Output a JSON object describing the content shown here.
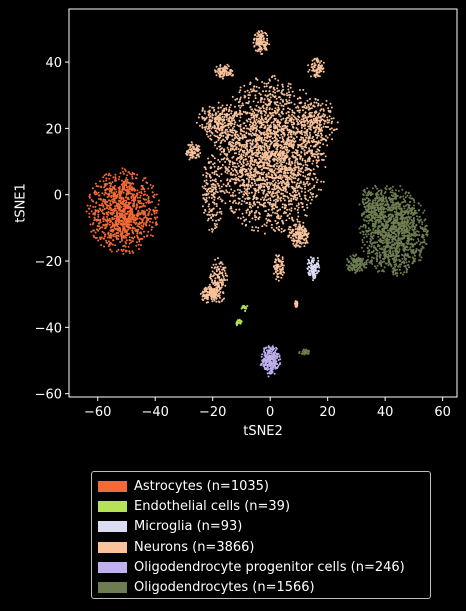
{
  "chart_data": {
    "type": "scatter",
    "title": "",
    "xlabel": "tSNE2",
    "ylabel": "tSNE1",
    "xlim": [
      -70,
      65
    ],
    "ylim": [
      -61,
      56
    ],
    "xticks": [
      -60,
      -40,
      -20,
      0,
      20,
      40,
      60
    ],
    "yticks": [
      -60,
      -40,
      -20,
      0,
      20,
      40
    ],
    "grid": false,
    "legend_position": "below",
    "series": [
      {
        "name": "Astrocytes (n=1035)",
        "color": "#f26a38",
        "count": 1035,
        "clusters": [
          {
            "cx": -51,
            "cy": -5,
            "sx": 6.5,
            "sy": 6.5,
            "weight": 1.0
          }
        ]
      },
      {
        "name": "Endothelial cells (n=39)",
        "color": "#b6e356",
        "count": 39,
        "clusters": [
          {
            "cx": -9,
            "cy": -34,
            "sx": 0.6,
            "sy": 0.6,
            "weight": 0.45
          },
          {
            "cx": -11,
            "cy": -38.5,
            "sx": 0.7,
            "sy": 0.6,
            "weight": 0.55
          }
        ]
      },
      {
        "name": "Microglia (n=93)",
        "color": "#dcdcf2",
        "count": 93,
        "clusters": [
          {
            "cx": 15,
            "cy": -22,
            "sx": 1.2,
            "sy": 2.0,
            "weight": 1.0
          }
        ]
      },
      {
        "name": "Neurons (n=3866)",
        "color": "#f8c29b",
        "count": 3866,
        "clusters": [
          {
            "cx": 0,
            "cy": 12,
            "sx": 10,
            "sy": 12,
            "weight": 0.62
          },
          {
            "cx": -18,
            "cy": 22,
            "sx": 4,
            "sy": 3,
            "weight": 0.06
          },
          {
            "cx": 16,
            "cy": 22,
            "sx": 4,
            "sy": 4,
            "weight": 0.05
          },
          {
            "cx": 16,
            "cy": 38,
            "sx": 1.6,
            "sy": 1.6,
            "weight": 0.02
          },
          {
            "cx": -16,
            "cy": 37,
            "sx": 1.8,
            "sy": 1.2,
            "weight": 0.02
          },
          {
            "cx": -3,
            "cy": 46,
            "sx": 1.5,
            "sy": 1.8,
            "weight": 0.03
          },
          {
            "cx": -27,
            "cy": 13,
            "sx": 1.5,
            "sy": 1.5,
            "weight": 0.02
          },
          {
            "cx": 10,
            "cy": -12,
            "sx": 2,
            "sy": 2,
            "weight": 0.04
          },
          {
            "cx": 3,
            "cy": -22,
            "sx": 1.0,
            "sy": 2.2,
            "weight": 0.02
          },
          {
            "cx": -18,
            "cy": -26,
            "sx": 1.6,
            "sy": 3.5,
            "weight": 0.04
          },
          {
            "cx": -21,
            "cy": -30,
            "sx": 1.6,
            "sy": 1.4,
            "weight": 0.03
          },
          {
            "cx": -20,
            "cy": 0,
            "sx": 2,
            "sy": 6,
            "weight": 0.04
          },
          {
            "cx": 9,
            "cy": -33,
            "sx": 0.3,
            "sy": 0.5,
            "weight": 0.01
          }
        ]
      },
      {
        "name": "Oligodendrocyte progenitor cells (n=246)",
        "color": "#bfb1ee",
        "count": 246,
        "clusters": [
          {
            "cx": 0,
            "cy": -50,
            "sx": 1.8,
            "sy": 2.5,
            "weight": 1.0
          }
        ]
      },
      {
        "name": "Oligodendrocytes (n=1566)",
        "color": "#6e7d50",
        "count": 1566,
        "clusters": [
          {
            "cx": 43,
            "cy": -11,
            "sx": 6.0,
            "sy": 7.0,
            "weight": 0.8
          },
          {
            "cx": 36,
            "cy": -3,
            "sx": 2.5,
            "sy": 3.0,
            "weight": 0.1
          },
          {
            "cx": 30,
            "cy": -21,
            "sx": 2.0,
            "sy": 1.5,
            "weight": 0.08
          },
          {
            "cx": 12,
            "cy": -47.5,
            "sx": 1.0,
            "sy": 0.5,
            "weight": 0.02
          }
        ]
      }
    ]
  }
}
